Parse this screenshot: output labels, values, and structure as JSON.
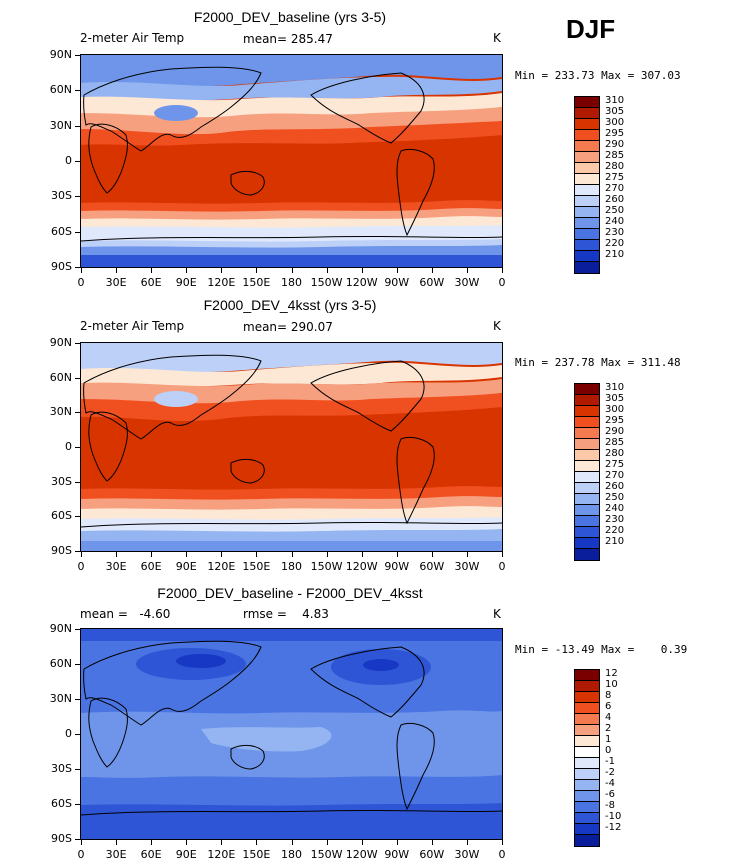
{
  "season": "DJF",
  "latitude_labels": [
    "90N",
    "60N",
    "30N",
    "0",
    "30S",
    "60S",
    "90S"
  ],
  "longitude_labels": [
    "0",
    "30E",
    "60E",
    "90E",
    "120E",
    "150E",
    "180",
    "150W",
    "120W",
    "90W",
    "60W",
    "30W",
    "0"
  ],
  "panels": [
    {
      "title": "F2000_DEV_baseline (yrs 3-5)",
      "left_label": "2-meter Air Temp",
      "center_label": "mean= 285.47",
      "units": "K",
      "minmax": "Min = 233.73 Max = 307.03",
      "colorbar": {
        "labels": [
          "310",
          "305",
          "300",
          "295",
          "290",
          "285",
          "280",
          "275",
          "270",
          "260",
          "250",
          "240",
          "230",
          "220",
          "210"
        ],
        "colors": [
          "#7a0000",
          "#b01a00",
          "#d83400",
          "#f05020",
          "#f47a50",
          "#f7a080",
          "#fbc8a8",
          "#fde8d5",
          "#dfe9fb",
          "#bcd0f8",
          "#94b4f2",
          "#6e95ea",
          "#4a74e2",
          "#2d55d6",
          "#1738c4",
          "#0a1e9c"
        ]
      }
    },
    {
      "title": "F2000_DEV_4ksst (yrs 3-5)",
      "left_label": "2-meter Air Temp",
      "center_label": "mean= 290.07",
      "units": "K",
      "minmax": "Min = 237.78 Max = 311.48",
      "colorbar": {
        "labels": [
          "310",
          "305",
          "300",
          "295",
          "290",
          "285",
          "280",
          "275",
          "270",
          "260",
          "250",
          "240",
          "230",
          "220",
          "210"
        ],
        "colors": [
          "#7a0000",
          "#b01a00",
          "#d83400",
          "#f05020",
          "#f47a50",
          "#f7a080",
          "#fbc8a8",
          "#fde8d5",
          "#dfe9fb",
          "#bcd0f8",
          "#94b4f2",
          "#6e95ea",
          "#4a74e2",
          "#2d55d6",
          "#1738c4",
          "#0a1e9c"
        ]
      }
    },
    {
      "title": "F2000_DEV_baseline - F2000_DEV_4ksst",
      "left_label": "mean =   -4.60",
      "center_label": "rmse =    4.83",
      "units": "K",
      "minmax": "Min = -13.49 Max =    0.39",
      "colorbar": {
        "labels": [
          "12",
          "10",
          "8",
          "6",
          "4",
          "2",
          "1",
          "0",
          "-1",
          "-2",
          "-4",
          "-6",
          "-8",
          "-10",
          "-12"
        ],
        "colors": [
          "#7a0000",
          "#b01a00",
          "#d83400",
          "#f05020",
          "#f47a50",
          "#f7a080",
          "#fde8d5",
          "#ffffff",
          "#dfe9fb",
          "#bcd0f8",
          "#94b4f2",
          "#6e95ea",
          "#4a74e2",
          "#2d55d6",
          "#1738c4",
          "#0a1e9c"
        ]
      }
    }
  ],
  "chart_data": [
    {
      "type": "heatmap",
      "title": "F2000_DEV_baseline (yrs 3-5)",
      "variable": "2-meter Air Temp",
      "units": "K",
      "mean": 285.47,
      "min": 233.73,
      "max": 307.03,
      "x_range": [
        0,
        360
      ],
      "y_range": [
        -90,
        90
      ],
      "contour_levels": [
        210,
        220,
        230,
        240,
        250,
        260,
        270,
        275,
        280,
        285,
        290,
        295,
        300,
        305,
        310
      ]
    },
    {
      "type": "heatmap",
      "title": "F2000_DEV_4ksst (yrs 3-5)",
      "variable": "2-meter Air Temp",
      "units": "K",
      "mean": 290.07,
      "min": 237.78,
      "max": 311.48,
      "x_range": [
        0,
        360
      ],
      "y_range": [
        -90,
        90
      ],
      "contour_levels": [
        210,
        220,
        230,
        240,
        250,
        260,
        270,
        275,
        280,
        285,
        290,
        295,
        300,
        305,
        310
      ]
    },
    {
      "type": "heatmap",
      "title": "F2000_DEV_baseline - F2000_DEV_4ksst",
      "units": "K",
      "mean": -4.6,
      "rmse": 4.83,
      "min": -13.49,
      "max": 0.39,
      "x_range": [
        0,
        360
      ],
      "y_range": [
        -90,
        90
      ],
      "contour_levels": [
        -12,
        -10,
        -8,
        -6,
        -4,
        -2,
        -1,
        0,
        1,
        2,
        4,
        6,
        8,
        10,
        12
      ]
    }
  ]
}
